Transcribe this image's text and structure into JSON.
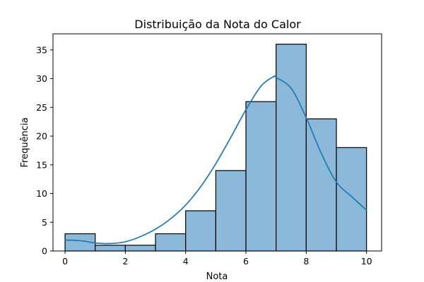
{
  "chart_data": {
    "type": "bar",
    "title": "Distribuição da Nota do Calor",
    "xlabel": "Nota",
    "ylabel": "Frequência",
    "xlim": [
      -0.4,
      10.5
    ],
    "ylim": [
      0,
      37.8
    ],
    "xticks": [
      0,
      2,
      4,
      6,
      8,
      10
    ],
    "yticks": [
      0,
      5,
      10,
      15,
      20,
      25,
      30,
      35
    ],
    "bins": [
      {
        "x0": 0,
        "x1": 1,
        "count": 3
      },
      {
        "x0": 1,
        "x1": 2,
        "count": 1
      },
      {
        "x0": 2,
        "x1": 3,
        "count": 1
      },
      {
        "x0": 3,
        "x1": 4,
        "count": 3
      },
      {
        "x0": 4,
        "x1": 5,
        "count": 7
      },
      {
        "x0": 5,
        "x1": 6,
        "count": 14
      },
      {
        "x0": 6,
        "x1": 7,
        "count": 26
      },
      {
        "x0": 7,
        "x1": 8,
        "count": 36
      },
      {
        "x0": 8,
        "x1": 9,
        "count": 23
      },
      {
        "x0": 9,
        "x1": 10,
        "count": 18
      }
    ],
    "kde": {
      "x": [
        0,
        0.5,
        1.0,
        1.5,
        2.0,
        2.5,
        3.0,
        3.5,
        4.0,
        4.5,
        5.0,
        5.5,
        6.0,
        6.5,
        6.9,
        7.0,
        7.5,
        8.0,
        8.5,
        9.0,
        9.5,
        10.0
      ],
      "y": [
        1.9,
        1.8,
        1.4,
        1.3,
        1.6,
        2.5,
        3.8,
        5.6,
        8.0,
        11.2,
        15.2,
        19.8,
        24.6,
        28.7,
        30.3,
        30.2,
        28.3,
        23.2,
        17.0,
        12.0,
        9.5,
        7.1
      ]
    },
    "colors": {
      "bar_fill": "#8cb9da",
      "bar_edge": "#000000",
      "kde_line": "#1f77b4"
    },
    "grid": false,
    "legend": "none"
  }
}
